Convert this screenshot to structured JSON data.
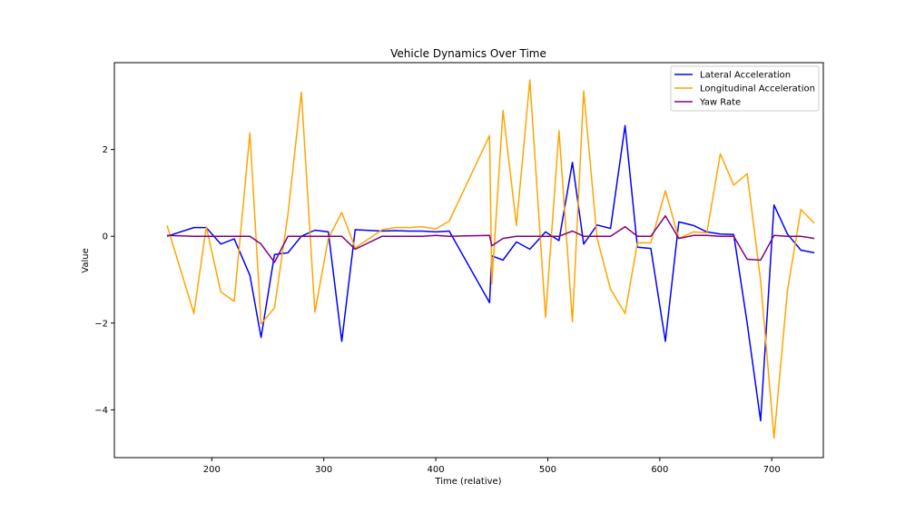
{
  "chart_data": {
    "type": "line",
    "title": "Vehicle Dynamics Over Time",
    "xlabel": "Time (relative)",
    "ylabel": "Value",
    "xlim": [
      113,
      746
    ],
    "ylim": [
      -5.1,
      4.0
    ],
    "xticks": [
      200,
      300,
      400,
      500,
      600,
      700
    ],
    "yticks": [
      -4,
      -2,
      0,
      2
    ],
    "grid": false,
    "legend_position": "top-right",
    "x": [
      160,
      184,
      195,
      208,
      220,
      234,
      244,
      256,
      268,
      280,
      292,
      304,
      316,
      328,
      352,
      364,
      376,
      388,
      400,
      412,
      448,
      450,
      460,
      472,
      484,
      498,
      510,
      522,
      532,
      544,
      556,
      569,
      580,
      592,
      605,
      617,
      630,
      642,
      654,
      666,
      678,
      690,
      702,
      714,
      726,
      738
    ],
    "series": [
      {
        "name": "Lateral Acceleration",
        "color": "#0000ff",
        "values": [
          0.0,
          0.2,
          0.2,
          -0.18,
          -0.06,
          -0.9,
          -2.33,
          -0.42,
          -0.38,
          0.0,
          0.14,
          0.1,
          -2.42,
          0.15,
          0.12,
          0.13,
          0.12,
          0.12,
          0.1,
          0.12,
          -1.53,
          -0.45,
          -0.55,
          -0.13,
          -0.3,
          0.1,
          -0.1,
          1.7,
          -0.18,
          0.26,
          0.18,
          2.55,
          -0.25,
          -0.28,
          -2.42,
          0.33,
          0.25,
          0.1,
          0.05,
          0.04,
          -2.0,
          -4.25,
          0.72,
          0.05,
          -0.32,
          -0.38
        ]
      },
      {
        "name": "Longitudinal Acceleration",
        "color": "#ffa500",
        "values": [
          0.25,
          -1.78,
          0.22,
          -1.28,
          -1.5,
          2.38,
          -2.02,
          -1.65,
          0.5,
          3.32,
          -1.75,
          -0.05,
          0.55,
          -0.27,
          0.15,
          0.2,
          0.2,
          0.22,
          0.17,
          0.35,
          2.32,
          -1.1,
          2.9,
          0.25,
          3.6,
          -1.87,
          2.43,
          -1.97,
          3.35,
          -0.05,
          -1.22,
          -1.78,
          -0.15,
          -0.15,
          1.05,
          -0.05,
          0.1,
          0.08,
          1.9,
          1.18,
          1.44,
          -1.02,
          -4.65,
          -1.25,
          0.62,
          0.3
        ]
      },
      {
        "name": "Yaw Rate",
        "color": "#800080",
        "values": [
          0.02,
          0.0,
          0.0,
          0.0,
          0.0,
          0.0,
          -0.18,
          -0.6,
          0.0,
          0.0,
          0.0,
          0.0,
          0.0,
          -0.3,
          0.0,
          0.0,
          0.0,
          0.0,
          0.02,
          0.0,
          0.02,
          -0.22,
          -0.05,
          0.0,
          0.0,
          0.0,
          0.0,
          0.12,
          0.0,
          0.0,
          0.0,
          0.22,
          0.0,
          0.0,
          0.47,
          -0.05,
          0.02,
          0.02,
          0.0,
          0.0,
          -0.53,
          -0.55,
          0.02,
          0.0,
          0.0,
          -0.05
        ]
      }
    ]
  }
}
